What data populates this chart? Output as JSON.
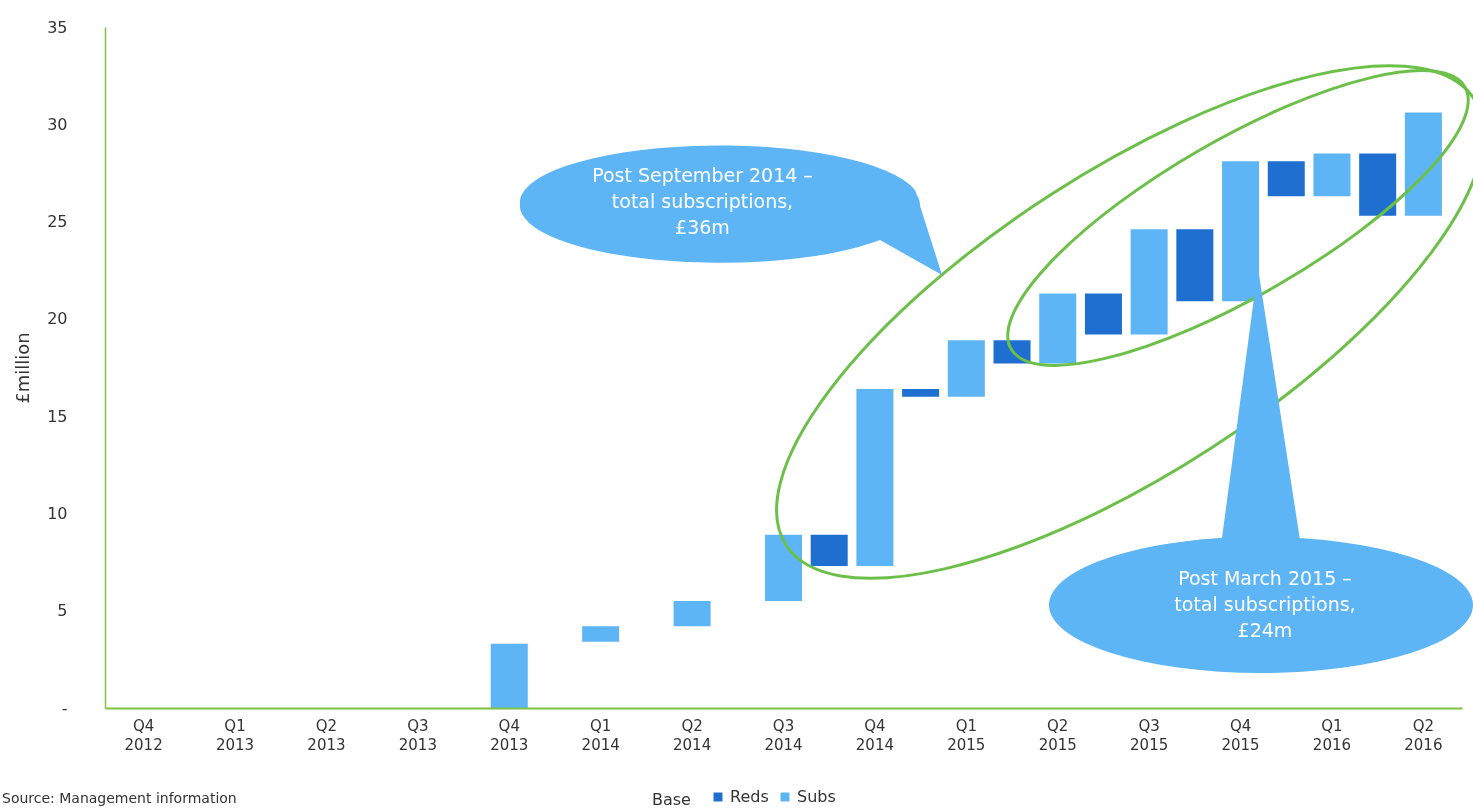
{
  "chart_data": {
    "type": "bar",
    "ylabel": "£million",
    "ylim": [
      0,
      35
    ],
    "yticks": [
      {
        "value": 0,
        "label": "-"
      },
      5,
      10,
      15,
      20,
      25,
      30,
      35
    ],
    "legend": "bottom",
    "grid": false,
    "categories": [
      "Q4 2012",
      null,
      "Q1 2013",
      null,
      "Q2 2013",
      null,
      "Q3 2013",
      null,
      "Q4 2013",
      null,
      "Q1 2014",
      null,
      "Q2 2014",
      null,
      "Q3 2014",
      null,
      "Q4 2014",
      null,
      "Q1 2015",
      null,
      "Q2 2015",
      null,
      "Q3 2015",
      null,
      "Q4 2015",
      null,
      "Q1 2016",
      null,
      "Q2 2016"
    ],
    "series": [
      {
        "name": "Reds",
        "color": "#1f6fd1",
        "base": [
          null,
          null,
          null,
          null,
          null,
          null,
          null,
          null,
          null,
          null,
          null,
          null,
          null,
          null,
          null,
          7.3,
          null,
          16.0,
          null,
          17.7,
          null,
          19.2,
          null,
          20.9,
          null,
          26.3,
          null,
          25.3,
          null
        ],
        "values": [
          null,
          null,
          null,
          null,
          null,
          null,
          null,
          null,
          null,
          null,
          null,
          null,
          null,
          null,
          null,
          1.6,
          null,
          0.4,
          null,
          1.2,
          null,
          2.1,
          null,
          3.7,
          null,
          1.8,
          null,
          3.2,
          null
        ]
      },
      {
        "name": "Subs",
        "color": "#5eb5f5",
        "base": [
          null,
          null,
          null,
          null,
          null,
          null,
          null,
          null,
          0,
          null,
          3.4,
          null,
          4.2,
          null,
          5.5,
          null,
          7.3,
          null,
          16.0,
          null,
          17.7,
          null,
          19.2,
          null,
          20.9,
          null,
          26.3,
          null,
          25.3
        ],
        "values": [
          null,
          null,
          null,
          null,
          null,
          null,
          null,
          null,
          3.3,
          null,
          0.8,
          null,
          1.3,
          null,
          3.4,
          null,
          9.1,
          null,
          2.9,
          null,
          3.6,
          null,
          5.4,
          null,
          7.2,
          null,
          2.2,
          null,
          5.3
        ]
      }
    ],
    "annotations": [
      "Post September 2014 – total subscriptions, £36m",
      "Post March 2015 – total subscriptions, £24m",
      "Base",
      "Source: Management information"
    ]
  }
}
